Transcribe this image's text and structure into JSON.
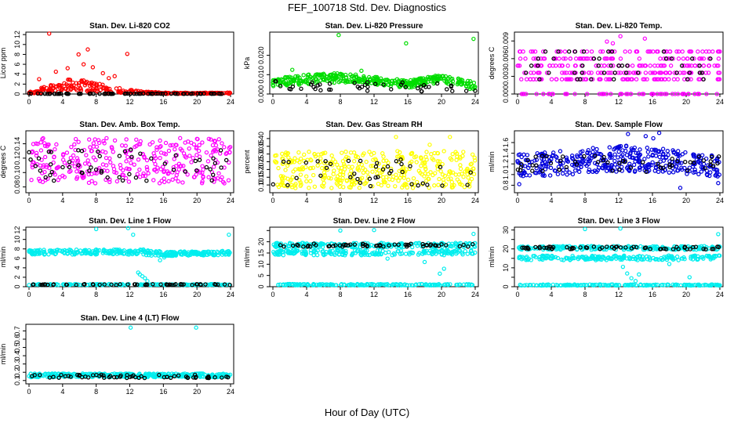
{
  "figure": {
    "title": "FEF_100718  Std. Dev. Diagnostics",
    "xlabel": "Hour of Day (UTC)"
  },
  "chart_data": [
    {
      "id": "co2",
      "type": "scatter",
      "title": "Stan. Dev. Li-820 CO2",
      "ylabel": "Licor ppm",
      "xlim": [
        0,
        24
      ],
      "xticks": [
        0,
        4,
        8,
        12,
        16,
        20,
        24
      ],
      "ylim": [
        0,
        12.5
      ],
      "yticks": [
        0,
        2,
        4,
        6,
        8,
        10,
        12
      ],
      "color": "#ff0000",
      "primary": {
        "band": [
          [
            0,
            0.1,
            0.5
          ],
          [
            3,
            0.3,
            2.0
          ],
          [
            5,
            0.6,
            3.2
          ],
          [
            7,
            0.5,
            2.6
          ],
          [
            10,
            0.3,
            1.4
          ],
          [
            13,
            0.1,
            0.6
          ],
          [
            16,
            0.05,
            0.3
          ],
          [
            20,
            0.05,
            0.25
          ],
          [
            24,
            0.05,
            0.3
          ]
        ],
        "n": 300,
        "outliers": [
          [
            2.4,
            12.2
          ],
          [
            5.9,
            8.0
          ],
          [
            7.0,
            9.0
          ],
          [
            11.7,
            8.1
          ],
          [
            3.2,
            4.5
          ],
          [
            6.5,
            6.0
          ],
          [
            8.8,
            4.2
          ],
          [
            4.6,
            5.2
          ],
          [
            10.2,
            3.6
          ],
          [
            1.2,
            3.0
          ],
          [
            9.5,
            3.2
          ],
          [
            7.6,
            5.4
          ]
        ]
      },
      "secondary": {
        "band": [
          [
            0,
            0.02,
            0.1
          ],
          [
            24,
            0.02,
            0.1
          ]
        ],
        "n": 80,
        "outliers": []
      }
    },
    {
      "id": "pressure",
      "type": "scatter",
      "title": "Stan. Dev. Li-820 Pressure",
      "ylabel": "kPa",
      "xlim": [
        0,
        24
      ],
      "xticks": [
        0,
        4,
        8,
        12,
        16,
        20,
        24
      ],
      "ylim": [
        0,
        0.032
      ],
      "yticks": [
        0.0,
        0.01,
        0.02
      ],
      "ytick_labels": [
        "0.000",
        "0.010",
        "0.020"
      ],
      "color": "#00dd00",
      "primary": {
        "band": [
          [
            0,
            0.004,
            0.008
          ],
          [
            4,
            0.005,
            0.01
          ],
          [
            8,
            0.006,
            0.011
          ],
          [
            12,
            0.005,
            0.009
          ],
          [
            16,
            0.003,
            0.007
          ],
          [
            20,
            0.006,
            0.01
          ],
          [
            24,
            0.002,
            0.006
          ]
        ],
        "n": 400,
        "outliers": [
          [
            7.8,
            0.0305
          ],
          [
            15.8,
            0.0262
          ],
          [
            23.8,
            0.0285
          ],
          [
            2.3,
            0.0125
          ],
          [
            10.5,
            0.012
          ]
        ]
      },
      "secondary": {
        "band": [
          [
            0,
            0.002,
            0.007
          ],
          [
            24,
            0.001,
            0.006
          ]
        ],
        "n": 45,
        "outliers": []
      }
    },
    {
      "id": "temp",
      "type": "scatter",
      "title": "Stan. Dev. Li-820 Temp.",
      "ylabel": "degrees C",
      "xlim": [
        0,
        24
      ],
      "xticks": [
        0,
        4,
        8,
        12,
        16,
        20,
        24
      ],
      "ylim": [
        0,
        0.0105
      ],
      "yticks": [
        0.0,
        0.003,
        0.006,
        0.009
      ],
      "ytick_labels": [
        "0.000",
        "0.003",
        "0.006",
        "0.009"
      ],
      "color": "#ff00ff",
      "primary": {
        "levels": [
          0.0,
          0.0025,
          0.0036,
          0.0048,
          0.006,
          0.0072
        ],
        "n": 360,
        "outliers": [
          [
            12.2,
            0.0098
          ],
          [
            10.6,
            0.0089
          ],
          [
            15.1,
            0.0094
          ],
          [
            11.3,
            0.0086
          ]
        ]
      },
      "secondary": {
        "levels": [
          0.0025,
          0.0036,
          0.0048,
          0.006,
          0.0072
        ],
        "n": 45,
        "outliers": []
      }
    },
    {
      "id": "boxtemp",
      "type": "scatter",
      "title": "Stan. Dev. Amb. Box Temp.",
      "ylabel": "degrees C",
      "xlim": [
        0,
        24
      ],
      "xticks": [
        0,
        4,
        8,
        12,
        16,
        20,
        24
      ],
      "ylim": [
        0.072,
        0.158
      ],
      "yticks": [
        0.08,
        0.1,
        0.12,
        0.14
      ],
      "ytick_labels": [
        "0.08",
        "0.10",
        "0.12",
        "0.14"
      ],
      "color": "#ff00ff",
      "primary": {
        "band": [
          [
            0,
            0.085,
            0.148
          ],
          [
            24,
            0.085,
            0.148
          ]
        ],
        "n": 320,
        "outliers": []
      },
      "secondary": {
        "band": [
          [
            0,
            0.088,
            0.132
          ],
          [
            24,
            0.088,
            0.132
          ]
        ],
        "n": 55,
        "outliers": []
      }
    },
    {
      "id": "rh",
      "type": "scatter",
      "title": "Stan. Dev. Gas Stream RH",
      "ylabel": "percent",
      "xlim": [
        0,
        24
      ],
      "xticks": [
        0,
        4,
        8,
        12,
        16,
        20,
        24
      ],
      "ylim": [
        0.05,
        0.45
      ],
      "yticks": [
        0.1,
        0.15,
        0.2,
        0.25,
        0.3,
        0.35,
        0.4
      ],
      "ytick_labels": [
        "0.10",
        "0.15",
        "0.20",
        "0.25",
        "0.30",
        "0.35",
        "0.40"
      ],
      "color": "#ffff00",
      "primary": {
        "band": [
          [
            0,
            0.08,
            0.32
          ],
          [
            24,
            0.08,
            0.32
          ]
        ],
        "n": 380,
        "outliers": [
          [
            14.6,
            0.41
          ],
          [
            21.0,
            0.41
          ],
          [
            18.6,
            0.36
          ]
        ]
      },
      "secondary": {
        "band": [
          [
            0,
            0.09,
            0.28
          ],
          [
            24,
            0.09,
            0.28
          ]
        ],
        "n": 40,
        "outliers": []
      }
    },
    {
      "id": "sampleflow",
      "type": "scatter",
      "title": "Stan. Dev. Sample Flow",
      "ylabel": "ml/min",
      "xlim": [
        0,
        24
      ],
      "xticks": [
        0,
        4,
        8,
        12,
        16,
        20,
        24
      ],
      "ylim": [
        0.66,
        1.82
      ],
      "yticks": [
        0.8,
        1.0,
        1.2,
        1.4,
        1.6
      ],
      "ytick_labels": [
        "0.8",
        "1.0",
        "1.2",
        "1.4",
        "1.6"
      ],
      "color": "#0000dd",
      "primary": {
        "band": [
          [
            0,
            0.95,
            1.38
          ],
          [
            6,
            1.0,
            1.45
          ],
          [
            12,
            1.05,
            1.55
          ],
          [
            16,
            1.05,
            1.52
          ],
          [
            20,
            1.0,
            1.42
          ],
          [
            24,
            0.95,
            1.35
          ]
        ],
        "n": 380,
        "outliers": [
          [
            16.8,
            1.78
          ],
          [
            13.1,
            1.76
          ],
          [
            15.2,
            1.72
          ],
          [
            19.3,
            0.75
          ],
          [
            23.8,
            0.84
          ],
          [
            0.2,
            0.82
          ],
          [
            16.1,
            1.68
          ]
        ]
      },
      "secondary": {
        "band": [
          [
            0,
            1.05,
            1.35
          ],
          [
            24,
            1.05,
            1.35
          ]
        ],
        "n": 55,
        "outliers": []
      }
    },
    {
      "id": "line1",
      "type": "scatter",
      "title": "Stan. Dev. Line 1 Flow",
      "ylabel": "ml/min",
      "xlim": [
        0,
        24
      ],
      "xticks": [
        0,
        4,
        8,
        12,
        16,
        20,
        24
      ],
      "ylim": [
        0,
        12.6
      ],
      "yticks": [
        0,
        2,
        4,
        6,
        8,
        10,
        12
      ],
      "color": "#00eeee",
      "primary": {
        "band": [
          [
            0,
            6.8,
            7.8
          ],
          [
            12,
            6.8,
            7.9
          ],
          [
            14,
            6.6,
            8.0
          ],
          [
            16,
            6.5,
            7.4
          ],
          [
            24,
            6.7,
            7.6
          ]
        ],
        "n": 320,
        "extra_band": [
          [
            0,
            0.35,
            0.55
          ],
          [
            24,
            0.35,
            0.55
          ]
        ],
        "extra_n": 160,
        "outliers": [
          [
            8.0,
            12.2
          ],
          [
            11.8,
            12.4
          ],
          [
            12.4,
            11.0
          ],
          [
            23.8,
            11.0
          ],
          [
            13.2,
            2.6
          ],
          [
            13.5,
            2.2
          ],
          [
            13.8,
            1.8
          ],
          [
            14.1,
            1.2
          ],
          [
            13.0,
            3.0
          ],
          [
            15.6,
            5.6
          ],
          [
            16.1,
            6.2
          ]
        ]
      },
      "secondary": {
        "band": [
          [
            0,
            0.35,
            0.55
          ],
          [
            24,
            0.35,
            0.55
          ]
        ],
        "n": 55,
        "outliers": []
      }
    },
    {
      "id": "line2",
      "type": "scatter",
      "title": "Stan. Dev. Line 2 Flow",
      "ylabel": "ml/min",
      "xlim": [
        0,
        24
      ],
      "xticks": [
        0,
        4,
        8,
        12,
        16,
        20,
        24
      ],
      "ylim": [
        0,
        26.5
      ],
      "yticks": [
        0,
        5,
        10,
        15,
        20,
        25
      ],
      "ytick_labels": [
        "0",
        "5",
        "10",
        "15",
        "20",
        ""
      ],
      "color": "#00eeee",
      "primary": {
        "band": [
          [
            0,
            17.5,
            19.5
          ],
          [
            24,
            17.5,
            19.5
          ]
        ],
        "n": 220,
        "extra_band": [
          [
            0,
            14.0,
            16.2
          ],
          [
            24,
            14.0,
            16.2
          ]
        ],
        "extra_n": 200,
        "extra_band2": [
          [
            0,
            0.6,
            1.2
          ],
          [
            24,
            0.6,
            1.2
          ]
        ],
        "extra2_n": 160,
        "outliers": [
          [
            8.0,
            25.0
          ],
          [
            12.0,
            25.2
          ],
          [
            23.8,
            23.5
          ],
          [
            19.8,
            5.8
          ],
          [
            20.3,
            8.0
          ],
          [
            13.6,
            12.5
          ],
          [
            18.0,
            11.0
          ]
        ]
      },
      "secondary": {
        "band": [
          [
            0,
            17.8,
            19.2
          ],
          [
            24,
            17.8,
            19.2
          ]
        ],
        "n": 60,
        "outliers": []
      }
    },
    {
      "id": "line3",
      "type": "scatter",
      "title": "Stan. Dev. Line 3 Flow",
      "ylabel": "ml/min",
      "xlim": [
        0,
        24
      ],
      "xticks": [
        0,
        4,
        8,
        12,
        16,
        20,
        24
      ],
      "ylim": [
        0,
        31.5
      ],
      "yticks": [
        0,
        5,
        10,
        15,
        20,
        25,
        30
      ],
      "ytick_labels": [
        "0",
        "",
        "10",
        "",
        "20",
        "",
        "30"
      ],
      "color": "#00eeee",
      "primary": {
        "band": [
          [
            0,
            19.5,
            21.5
          ],
          [
            24,
            19.5,
            21.5
          ]
        ],
        "n": 220,
        "extra_band": [
          [
            0,
            14.0,
            16.5
          ],
          [
            24,
            14.0,
            16.5
          ]
        ],
        "extra_n": 200,
        "extra_band2": [
          [
            0,
            0.6,
            1.2
          ],
          [
            24,
            0.6,
            1.2
          ]
        ],
        "extra2_n": 160,
        "outliers": [
          [
            8.0,
            30.5
          ],
          [
            12.2,
            30.8
          ],
          [
            23.8,
            27.8
          ],
          [
            12.5,
            10.5
          ],
          [
            13.0,
            7.0
          ],
          [
            13.5,
            4.5
          ],
          [
            14.0,
            3.0
          ],
          [
            14.4,
            6.5
          ],
          [
            20.4,
            5.0
          ],
          [
            18.0,
            12.0
          ]
        ]
      },
      "secondary": {
        "band": [
          [
            0,
            19.8,
            21.2
          ],
          [
            24,
            19.8,
            21.2
          ]
        ],
        "n": 60,
        "outliers": []
      }
    },
    {
      "id": "line4",
      "type": "scatter",
      "title": "Stan. Dev. Line 4 (LT) Flow",
      "ylabel": "ml/min",
      "xlim": [
        0,
        24
      ],
      "xticks": [
        0,
        4,
        8,
        12,
        16,
        20,
        24
      ],
      "ylim": [
        0.06,
        0.78
      ],
      "yticks": [
        0.1,
        0.2,
        0.3,
        0.4,
        0.5,
        0.6,
        0.7
      ],
      "ytick_labels": [
        "0.1",
        "0.2",
        "0.3",
        "0.4",
        "0.5",
        "0.6",
        "0.7"
      ],
      "color": "#00eeee",
      "primary": {
        "band": [
          [
            0,
            0.14,
            0.185
          ],
          [
            24,
            0.14,
            0.185
          ]
        ],
        "n": 360,
        "outliers": [
          [
            12.1,
            0.74
          ],
          [
            19.9,
            0.74
          ]
        ]
      },
      "secondary": {
        "band": [
          [
            0,
            0.13,
            0.17
          ],
          [
            24,
            0.13,
            0.17
          ]
        ],
        "n": 60,
        "outliers": []
      }
    }
  ]
}
